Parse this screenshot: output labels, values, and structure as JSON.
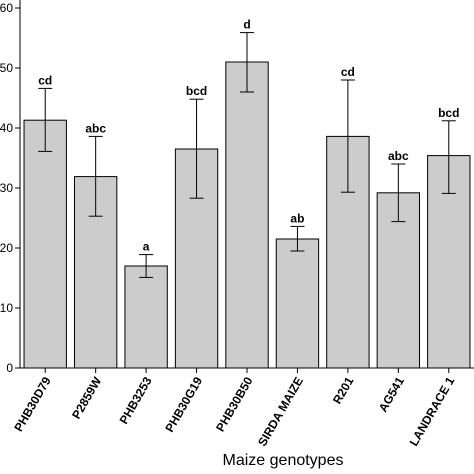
{
  "chart_data": {
    "type": "bar",
    "title": "",
    "xlabel": "Maize genotypes",
    "ylabel": "",
    "ylim": [
      0,
      60
    ],
    "yticks": [
      0,
      10,
      20,
      30,
      40,
      50,
      60
    ],
    "ytick_labels": [
      "0",
      "10",
      "20",
      "30",
      "40",
      "50",
      "60"
    ],
    "categories": [
      "PHB30D79",
      "P2859W",
      "PHB3253",
      "PHB30G19",
      "PHB30B50",
      "SIRDA MAIZE",
      "R201",
      "AG541",
      "LANDRACE 1"
    ],
    "values": [
      41.3,
      31.9,
      17.0,
      36.5,
      51.0,
      21.5,
      38.6,
      29.2,
      35.4
    ],
    "error_high": [
      46.6,
      38.6,
      18.9,
      44.8,
      55.9,
      23.6,
      48.0,
      34.0,
      41.2
    ],
    "error_low": [
      36.1,
      25.3,
      15.1,
      28.3,
      46.0,
      19.5,
      29.3,
      24.4,
      29.1
    ],
    "significance": [
      "cd",
      "abc",
      "a",
      "bcd",
      "d",
      "ab",
      "cd",
      "abc",
      "bcd"
    ],
    "bar_color": "#cccccc",
    "grid": false,
    "legend": "none"
  }
}
